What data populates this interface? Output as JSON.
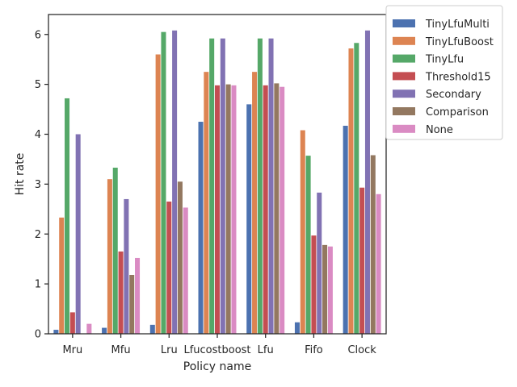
{
  "chart_data": {
    "type": "bar",
    "title": "",
    "xlabel": "Policy name",
    "ylabel": "Hit rate",
    "ylim": [
      0,
      6.4
    ],
    "yticks": [
      "0",
      "1",
      "2",
      "3",
      "4",
      "5",
      "6"
    ],
    "grid": false,
    "legend_position": "outside-top-right",
    "categories": [
      "Mru",
      "Mfu",
      "Lru",
      "Lfucostboost",
      "Lfu",
      "Fifo",
      "Clock"
    ],
    "series": [
      {
        "name": "TinyLfuMulti",
        "color": "#4c72b0",
        "values": [
          0.08,
          0.12,
          0.18,
          4.25,
          4.6,
          0.23,
          4.17
        ]
      },
      {
        "name": "TinyLfuBoost",
        "color": "#dd8452",
        "values": [
          2.33,
          3.1,
          5.6,
          5.25,
          5.25,
          4.08,
          5.72
        ]
      },
      {
        "name": "TinyLfu",
        "color": "#55a868",
        "values": [
          4.72,
          3.33,
          6.05,
          5.92,
          5.92,
          3.57,
          5.83
        ]
      },
      {
        "name": "Threshold15",
        "color": "#c44e52",
        "values": [
          0.43,
          1.65,
          2.65,
          4.98,
          4.98,
          1.97,
          2.93
        ]
      },
      {
        "name": "Secondary",
        "color": "#8172b3",
        "values": [
          4.0,
          2.7,
          6.08,
          5.92,
          5.92,
          2.83,
          6.08
        ]
      },
      {
        "name": "Comparison",
        "color": "#937860",
        "values": [
          0.0,
          1.18,
          3.05,
          5.0,
          5.02,
          1.78,
          3.58
        ]
      },
      {
        "name": "None",
        "color": "#da8bc3",
        "values": [
          0.2,
          1.52,
          2.53,
          4.98,
          4.95,
          1.75,
          2.8
        ]
      }
    ]
  }
}
